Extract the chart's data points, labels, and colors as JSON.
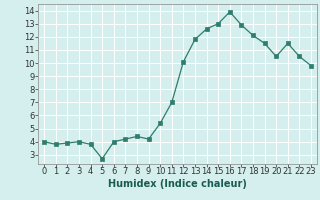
{
  "x": [
    0,
    1,
    2,
    3,
    4,
    5,
    6,
    7,
    8,
    9,
    10,
    11,
    12,
    13,
    14,
    15,
    16,
    17,
    18,
    19,
    20,
    21,
    22,
    23
  ],
  "y": [
    4.0,
    3.8,
    3.9,
    4.0,
    3.8,
    2.7,
    4.0,
    4.2,
    4.4,
    4.2,
    5.4,
    7.0,
    10.1,
    11.8,
    12.6,
    13.0,
    13.9,
    12.9,
    12.1,
    11.5,
    10.5,
    11.5,
    10.5,
    9.8
  ],
  "line_color": "#2e7d6e",
  "marker_color": "#2e7d6e",
  "bg_color": "#d4efed",
  "grid_color": "#ffffff",
  "xlabel": "Humidex (Indice chaleur)",
  "xlim": [
    -0.5,
    23.5
  ],
  "ylim": [
    2.3,
    14.5
  ],
  "yticks": [
    3,
    4,
    5,
    6,
    7,
    8,
    9,
    10,
    11,
    12,
    13,
    14
  ],
  "xticks": [
    0,
    1,
    2,
    3,
    4,
    5,
    6,
    7,
    8,
    9,
    10,
    11,
    12,
    13,
    14,
    15,
    16,
    17,
    18,
    19,
    20,
    21,
    22,
    23
  ],
  "tick_fontsize": 6,
  "label_fontsize": 7
}
